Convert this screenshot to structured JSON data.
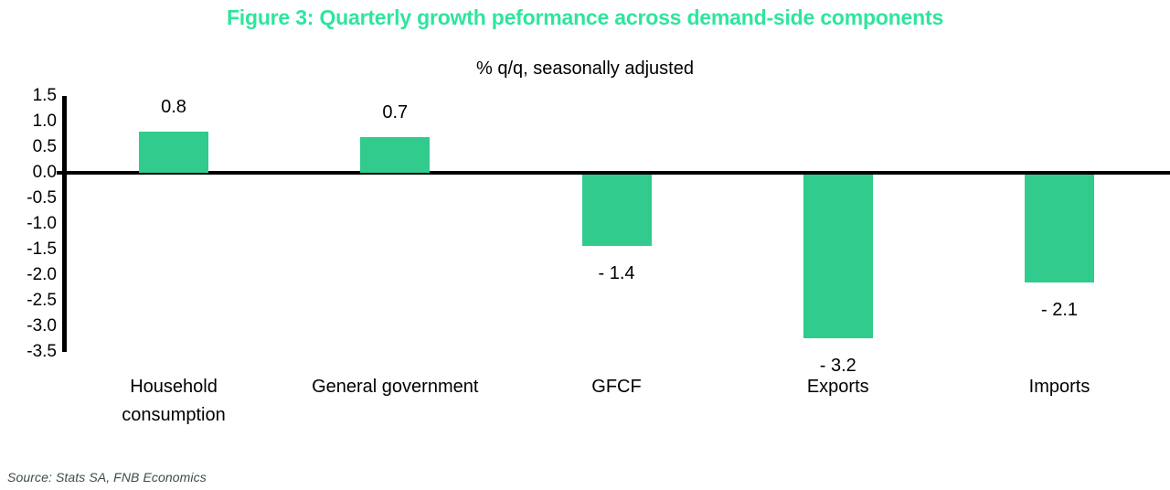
{
  "chart_data": {
    "type": "bar",
    "title": "Figure 3: Quarterly growth peformance across demand-side components",
    "subtitle": "% q/q, seasonally adjusted",
    "categories": [
      "Household consumption",
      "General government",
      "GFCF",
      "Exports",
      "Imports"
    ],
    "values": [
      0.8,
      0.7,
      -1.4,
      -3.2,
      -2.1
    ],
    "value_labels": [
      "0.8",
      "0.7",
      "- 1.4",
      "- 3.2",
      "- 2.1"
    ],
    "ylim": [
      -3.5,
      1.5
    ],
    "ytick_step": 0.5,
    "ytick_labels": [
      "1.5",
      "1.0",
      "0.5",
      "0.0",
      "-0.5",
      "-1.0",
      "-1.5",
      "-2.0",
      "-2.5",
      "-3.0",
      "-3.5"
    ],
    "grid": false,
    "legend": "none",
    "bar_color": "#30cb8d",
    "title_color": "#2ee59d",
    "axis_color": "#000000",
    "source": "Source: Stats SA, FNB Economics"
  }
}
